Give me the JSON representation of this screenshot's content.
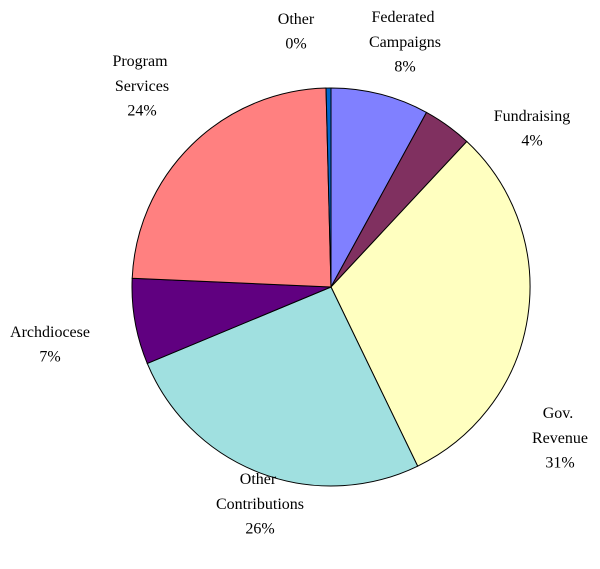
{
  "chart_data": {
    "type": "pie",
    "categories": [
      "Federated Campaigns",
      "Fundraising",
      "Gov. Revenue",
      "Other Contributions",
      "Archdiocese",
      "Program Services",
      "Other"
    ],
    "values": [
      8,
      4,
      31,
      26,
      7,
      24,
      0.4
    ],
    "value_labels": [
      "8%",
      "4%",
      "31%",
      "26%",
      "7%",
      "24%",
      "0%"
    ],
    "colors": [
      "#8080ff",
      "#803060",
      "#ffffc0",
      "#a0e0e0",
      "#600080",
      "#ff8080",
      "#0066cc"
    ]
  }
}
